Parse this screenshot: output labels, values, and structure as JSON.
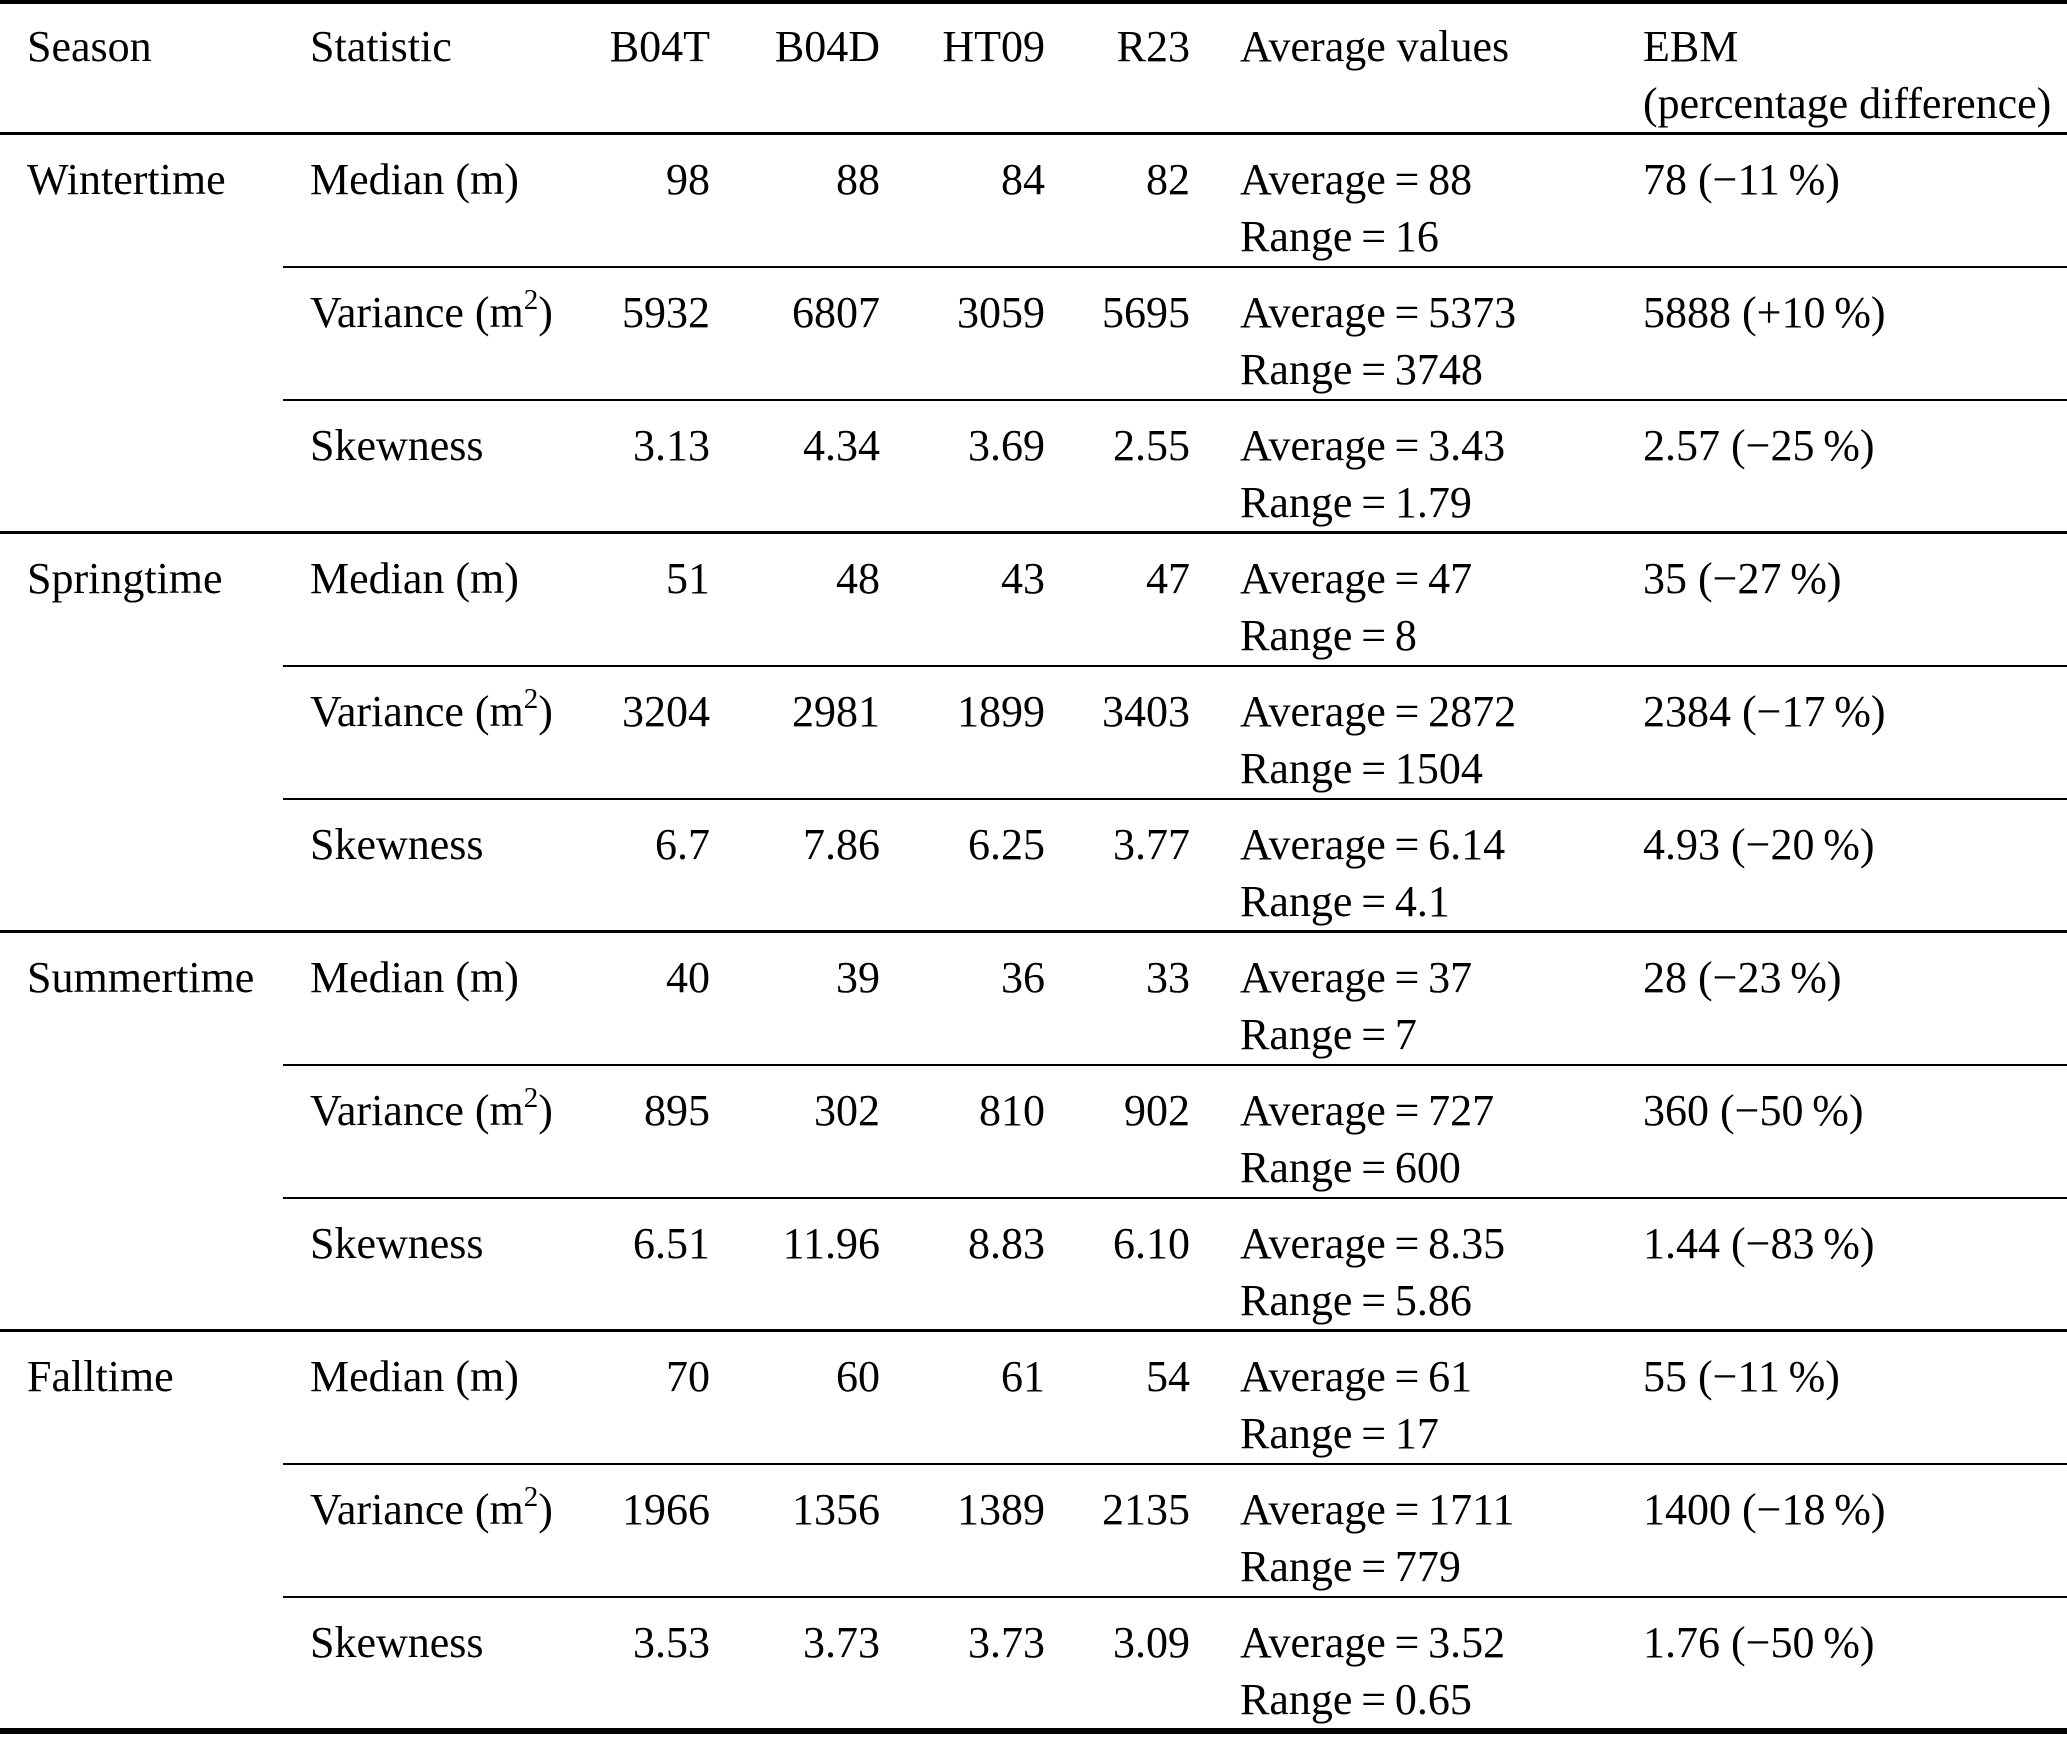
{
  "table": {
    "headers": {
      "season": "Season",
      "statistic": "Statistic",
      "b04t": "B04T",
      "b04d": "B04D",
      "ht09": "HT09",
      "r23": "R23",
      "average": "Average values",
      "ebm_line1": "EBM",
      "ebm_line2": "(percentage difference)"
    },
    "groups": [
      {
        "season": "Wintertime",
        "rows": [
          {
            "stat_pre": "Median (m)",
            "stat_sup": "",
            "stat_post": "",
            "b04t": "98",
            "b04d": "88",
            "ht09": "84",
            "r23": "82",
            "avg": "Average = 88",
            "range": "Range = 16",
            "ebm": "78 (−11 %)"
          },
          {
            "stat_pre": "Variance (m",
            "stat_sup": "2",
            "stat_post": ")",
            "b04t": "5932",
            "b04d": "6807",
            "ht09": "3059",
            "r23": "5695",
            "avg": "Average = 5373",
            "range": "Range = 3748",
            "ebm": "5888 (+10 %)"
          },
          {
            "stat_pre": "Skewness",
            "stat_sup": "",
            "stat_post": "",
            "b04t": "3.13",
            "b04d": "4.34",
            "ht09": "3.69",
            "r23": "2.55",
            "avg": "Average = 3.43",
            "range": "Range = 1.79",
            "ebm": "2.57 (−25 %)"
          }
        ]
      },
      {
        "season": "Springtime",
        "rows": [
          {
            "stat_pre": "Median (m)",
            "stat_sup": "",
            "stat_post": "",
            "b04t": "51",
            "b04d": "48",
            "ht09": "43",
            "r23": "47",
            "avg": "Average = 47",
            "range": "Range = 8",
            "ebm": "35 (−27 %)"
          },
          {
            "stat_pre": "Variance (m",
            "stat_sup": "2",
            "stat_post": ")",
            "b04t": "3204",
            "b04d": "2981",
            "ht09": "1899",
            "r23": "3403",
            "avg": "Average = 2872",
            "range": "Range = 1504",
            "ebm": "2384 (−17 %)"
          },
          {
            "stat_pre": "Skewness",
            "stat_sup": "",
            "stat_post": "",
            "b04t": "6.7",
            "b04d": "7.86",
            "ht09": "6.25",
            "r23": "3.77",
            "avg": "Average = 6.14",
            "range": "Range = 4.1",
            "ebm": "4.93 (−20 %)"
          }
        ]
      },
      {
        "season": "Summertime",
        "rows": [
          {
            "stat_pre": "Median (m)",
            "stat_sup": "",
            "stat_post": "",
            "b04t": "40",
            "b04d": "39",
            "ht09": "36",
            "r23": "33",
            "avg": "Average = 37",
            "range": "Range = 7",
            "ebm": "28 (−23 %)"
          },
          {
            "stat_pre": "Variance (m",
            "stat_sup": "2",
            "stat_post": ")",
            "b04t": "895",
            "b04d": "302",
            "ht09": "810",
            "r23": "902",
            "avg": "Average = 727",
            "range": "Range = 600",
            "ebm": "360 (−50 %)"
          },
          {
            "stat_pre": "Skewness",
            "stat_sup": "",
            "stat_post": "",
            "b04t": "6.51",
            "b04d": "11.96",
            "ht09": "8.83",
            "r23": "6.10",
            "avg": "Average = 8.35",
            "range": "Range = 5.86",
            "ebm": "1.44 (−83 %)"
          }
        ]
      },
      {
        "season": "Falltime",
        "rows": [
          {
            "stat_pre": "Median (m)",
            "stat_sup": "",
            "stat_post": "",
            "b04t": "70",
            "b04d": "60",
            "ht09": "61",
            "r23": "54",
            "avg": "Average = 61",
            "range": "Range = 17",
            "ebm": "55 (−11 %)"
          },
          {
            "stat_pre": "Variance (m",
            "stat_sup": "2",
            "stat_post": ")",
            "b04t": "1966",
            "b04d": "1356",
            "ht09": "1389",
            "r23": "2135",
            "avg": "Average = 1711",
            "range": "Range = 779",
            "ebm": "1400 (−18 %)"
          },
          {
            "stat_pre": "Skewness",
            "stat_sup": "",
            "stat_post": "",
            "b04t": "3.53",
            "b04d": "3.73",
            "ht09": "3.73",
            "r23": "3.09",
            "avg": "Average = 3.52",
            "range": "Range = 0.65",
            "ebm": "1.76 (−50 %)"
          }
        ]
      }
    ]
  }
}
